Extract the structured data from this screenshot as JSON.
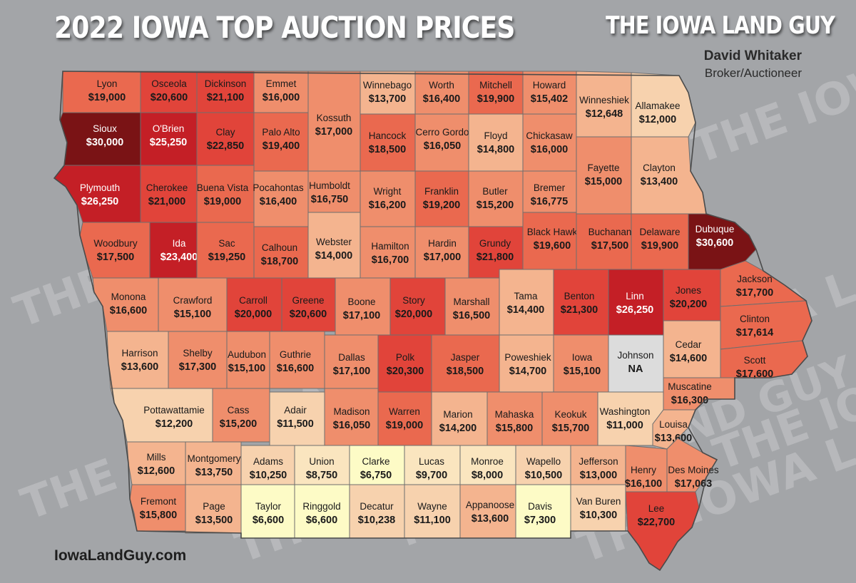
{
  "header": {
    "title": "2022 IOWA TOP AUCTION PRICES",
    "brand": "THE IOWA LAND GUY",
    "broker_name": "David Whitaker",
    "broker_role": "Broker/Auctioneer"
  },
  "footer": {
    "website": "IowaLandGuy.com"
  },
  "watermark": "THE IOWA LAND GUY",
  "colors": {
    "background": "#a3a5a8",
    "text_light": "#ffffff",
    "text_dark": "#1a1a1a",
    "county_border": "#6e6e6e",
    "price_scale": [
      {
        "min": 0,
        "color": "#fdfbc6"
      },
      {
        "min": 7500,
        "color": "#fae5bf"
      },
      {
        "min": 10000,
        "color": "#f7d2ae"
      },
      {
        "min": 12500,
        "color": "#f4b48f"
      },
      {
        "min": 15000,
        "color": "#ef8e6c"
      },
      {
        "min": 17500,
        "color": "#ea694f"
      },
      {
        "min": 20000,
        "color": "#e1443a"
      },
      {
        "min": 23000,
        "color": "#c41f26"
      },
      {
        "min": 29000,
        "color": "#7a1315"
      }
    ],
    "na_color": "#dcdcdc"
  },
  "counties": [
    {
      "name": "Lyon",
      "price": "$19,000",
      "value": 19000
    },
    {
      "name": "Osceola",
      "price": "$20,600",
      "value": 20600
    },
    {
      "name": "Dickinson",
      "price": "$21,100",
      "value": 21100
    },
    {
      "name": "Emmet",
      "price": "$16,000",
      "value": 16000
    },
    {
      "name": "Kossuth",
      "price": "$17,000",
      "value": 17000
    },
    {
      "name": "Winnebago",
      "price": "$13,700",
      "value": 13700
    },
    {
      "name": "Worth",
      "price": "$16,400",
      "value": 16400
    },
    {
      "name": "Mitchell",
      "price": "$19,900",
      "value": 19900
    },
    {
      "name": "Howard",
      "price": "$15,402",
      "value": 15402
    },
    {
      "name": "Winneshiek",
      "price": "$12,648",
      "value": 12648
    },
    {
      "name": "Allamakee",
      "price": "$12,000",
      "value": 12000
    },
    {
      "name": "Sioux",
      "price": "$30,000",
      "value": 30000
    },
    {
      "name": "O'Brien",
      "price": "$25,250",
      "value": 25250
    },
    {
      "name": "Clay",
      "price": "$22,850",
      "value": 22850
    },
    {
      "name": "Palo Alto",
      "price": "$19,400",
      "value": 19400
    },
    {
      "name": "Hancock",
      "price": "$18,500",
      "value": 18500
    },
    {
      "name": "Cerro Gordo",
      "price": "$16,050",
      "value": 16050
    },
    {
      "name": "Floyd",
      "price": "$14,800",
      "value": 14800
    },
    {
      "name": "Chickasaw",
      "price": "$16,000",
      "value": 16000
    },
    {
      "name": "Fayette",
      "price": "$15,000",
      "value": 15000
    },
    {
      "name": "Clayton",
      "price": "$13,400",
      "value": 13400
    },
    {
      "name": "Plymouth",
      "price": "$26,250",
      "value": 26250
    },
    {
      "name": "Cherokee",
      "price": "$21,000",
      "value": 21000
    },
    {
      "name": "Buena Vista",
      "price": "$19,000",
      "value": 19000
    },
    {
      "name": "Pocahontas",
      "price": "$16,400",
      "value": 16400
    },
    {
      "name": "Humboldt",
      "price": "$16,750",
      "value": 16750
    },
    {
      "name": "Wright",
      "price": "$16,200",
      "value": 16200
    },
    {
      "name": "Franklin",
      "price": "$19,200",
      "value": 19200
    },
    {
      "name": "Butler",
      "price": "$15,200",
      "value": 15200
    },
    {
      "name": "Bremer",
      "price": "$16,775",
      "value": 16775
    },
    {
      "name": "Black Hawk",
      "price": "$19,600",
      "value": 19600
    },
    {
      "name": "Buchanan",
      "price": "$17,500",
      "value": 17500
    },
    {
      "name": "Delaware",
      "price": "$19,900",
      "value": 19900
    },
    {
      "name": "Dubuque",
      "price": "$30,600",
      "value": 30600
    },
    {
      "name": "Woodbury",
      "price": "$17,500",
      "value": 17500
    },
    {
      "name": "Ida",
      "price": "$23,400",
      "value": 23400
    },
    {
      "name": "Sac",
      "price": "$19,250",
      "value": 19250
    },
    {
      "name": "Calhoun",
      "price": "$18,700",
      "value": 18700
    },
    {
      "name": "Webster",
      "price": "$14,000",
      "value": 14000
    },
    {
      "name": "Hamilton",
      "price": "$16,700",
      "value": 16700
    },
    {
      "name": "Hardin",
      "price": "$17,000",
      "value": 17000
    },
    {
      "name": "Grundy",
      "price": "$21,800",
      "value": 21800
    },
    {
      "name": "Tama",
      "price": "$14,400",
      "value": 14400
    },
    {
      "name": "Benton",
      "price": "$21,300",
      "value": 21300
    },
    {
      "name": "Linn",
      "price": "$26,250",
      "value": 26250
    },
    {
      "name": "Jones",
      "price": "$20,200",
      "value": 20200
    },
    {
      "name": "Jackson",
      "price": "$17,700",
      "value": 17700
    },
    {
      "name": "Monona",
      "price": "$16,600",
      "value": 16600
    },
    {
      "name": "Crawford",
      "price": "$15,100",
      "value": 15100
    },
    {
      "name": "Carroll",
      "price": "$20,000",
      "value": 20000
    },
    {
      "name": "Greene",
      "price": "$20,600",
      "value": 20600
    },
    {
      "name": "Boone",
      "price": "$17,100",
      "value": 17100
    },
    {
      "name": "Story",
      "price": "$20,000",
      "value": 20000
    },
    {
      "name": "Marshall",
      "price": "$16,500",
      "value": 16500
    },
    {
      "name": "Clinton",
      "price": "$17,614",
      "value": 17614
    },
    {
      "name": "Harrison",
      "price": "$13,600",
      "value": 13600
    },
    {
      "name": "Shelby",
      "price": "$17,300",
      "value": 17300
    },
    {
      "name": "Audubon",
      "price": "$15,100",
      "value": 15100
    },
    {
      "name": "Guthrie",
      "price": "$16,600",
      "value": 16600
    },
    {
      "name": "Dallas",
      "price": "$17,100",
      "value": 17100
    },
    {
      "name": "Polk",
      "price": "$20,300",
      "value": 20300
    },
    {
      "name": "Jasper",
      "price": "$18,500",
      "value": 18500
    },
    {
      "name": "Poweshiek",
      "price": "$14,700",
      "value": 14700
    },
    {
      "name": "Iowa",
      "price": "$15,100",
      "value": 15100
    },
    {
      "name": "Johnson",
      "price": "NA",
      "value": null
    },
    {
      "name": "Cedar",
      "price": "$14,600",
      "value": 14600
    },
    {
      "name": "Scott",
      "price": "$17,600",
      "value": 17600
    },
    {
      "name": "Muscatine",
      "price": "$16,300",
      "value": 16300
    },
    {
      "name": "Pottawattamie",
      "price": "$12,200",
      "value": 12200
    },
    {
      "name": "Cass",
      "price": "$15,200",
      "value": 15200
    },
    {
      "name": "Adair",
      "price": "$11,500",
      "value": 11500
    },
    {
      "name": "Madison",
      "price": "$16,050",
      "value": 16050
    },
    {
      "name": "Warren",
      "price": "$19,000",
      "value": 19000
    },
    {
      "name": "Marion",
      "price": "$14,200",
      "value": 14200
    },
    {
      "name": "Mahaska",
      "price": "$15,800",
      "value": 15800
    },
    {
      "name": "Keokuk",
      "price": "$15,700",
      "value": 15700
    },
    {
      "name": "Washington",
      "price": "$11,000",
      "value": 11000
    },
    {
      "name": "Louisa",
      "price": "$13,600",
      "value": 13600
    },
    {
      "name": "Mills",
      "price": "$12,600",
      "value": 12600
    },
    {
      "name": "Montgomery",
      "price": "$13,750",
      "value": 13750
    },
    {
      "name": "Adams",
      "price": "$10,250",
      "value": 10250
    },
    {
      "name": "Union",
      "price": "$8,750",
      "value": 8750
    },
    {
      "name": "Clarke",
      "price": "$6,750",
      "value": 6750
    },
    {
      "name": "Lucas",
      "price": "$9,700",
      "value": 9700
    },
    {
      "name": "Monroe",
      "price": "$8,000",
      "value": 8000
    },
    {
      "name": "Wapello",
      "price": "$10,500",
      "value": 10500
    },
    {
      "name": "Jefferson",
      "price": "$13,000",
      "value": 13000
    },
    {
      "name": "Henry",
      "price": "$16,100",
      "value": 16100
    },
    {
      "name": "Des Moines",
      "price": "$17,063",
      "value": 17063
    },
    {
      "name": "Fremont",
      "price": "$15,800",
      "value": 15800
    },
    {
      "name": "Page",
      "price": "$13,500",
      "value": 13500
    },
    {
      "name": "Taylor",
      "price": "$6,600",
      "value": 6600
    },
    {
      "name": "Ringgold",
      "price": "$6,600",
      "value": 6600
    },
    {
      "name": "Decatur",
      "price": "$10,238",
      "value": 10238
    },
    {
      "name": "Wayne",
      "price": "$11,100",
      "value": 11100
    },
    {
      "name": "Appanoose",
      "price": "$13,600",
      "value": 13600
    },
    {
      "name": "Davis",
      "price": "$7,300",
      "value": 7300
    },
    {
      "name": "Van Buren",
      "price": "$10,300",
      "value": 10300
    },
    {
      "name": "Lee",
      "price": "$22,700",
      "value": 22700
    }
  ]
}
